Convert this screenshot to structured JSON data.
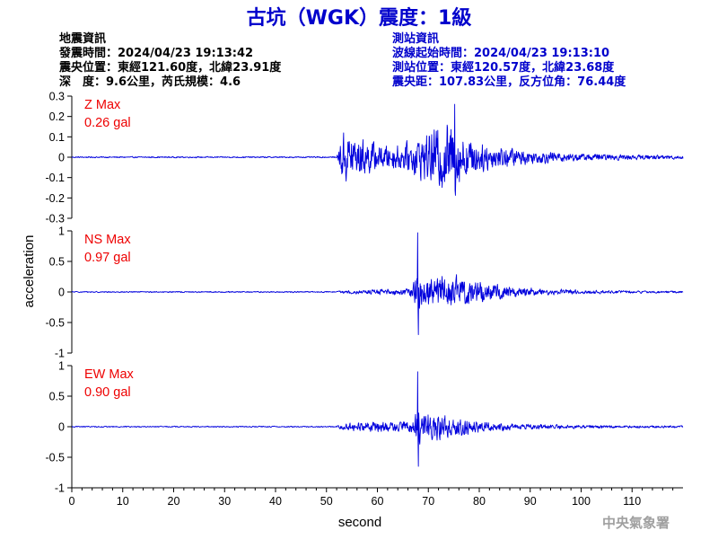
{
  "header": {
    "title": "古坑（WGK）震度：1級",
    "event_info": {
      "heading": "地震資訊",
      "origin_time": "發震時間：2024/04/23 19:13:42",
      "epicenter": "震央位置：東經121.60度，北緯23.91度",
      "depth_magnitude": "深　度：9.6公里，芮氏規模：4.6"
    },
    "station_info": {
      "heading": "測站資訊",
      "wave_start": "波線起始時間：2024/04/23 19:13:10",
      "location": "測站位置：東經120.57度，北緯23.68度",
      "distance_azimuth": "震央距：107.83公里，反方位角：76.44度"
    }
  },
  "footer": {
    "agency": "中央氣象署"
  },
  "chart_data": {
    "type": "line",
    "xlabel": "second",
    "ylabel": "acceleration",
    "x_range": [
      0,
      120
    ],
    "x_ticks": [
      0,
      10,
      20,
      30,
      40,
      50,
      60,
      70,
      80,
      90,
      100,
      110
    ],
    "grid": false,
    "line_color": "#0000dd",
    "panels": [
      {
        "component": "Z",
        "max_label": "Z Max",
        "max_value": "0.26 gal",
        "ylim": [
          -0.3,
          0.3
        ],
        "y_ticks": [
          0.3,
          0.2,
          0.1,
          0,
          -0.1,
          -0.2,
          -0.3
        ],
        "envelope": {
          "t": [
            0,
            52,
            52.5,
            53,
            54,
            56,
            58,
            60,
            62,
            64,
            66,
            68,
            70,
            72,
            74,
            76,
            78,
            80,
            82,
            84,
            86,
            88,
            90,
            94,
            98,
            104,
            110,
            120
          ],
          "a": [
            0.004,
            0.004,
            0.06,
            0.15,
            0.17,
            0.12,
            0.11,
            0.08,
            0.07,
            0.08,
            0.09,
            0.13,
            0.15,
            0.2,
            0.23,
            0.18,
            0.12,
            0.09,
            0.08,
            0.07,
            0.06,
            0.05,
            0.04,
            0.035,
            0.025,
            0.02,
            0.015,
            0.012
          ]
        },
        "peak": {
          "t": 75.2,
          "value": 0.26
        }
      },
      {
        "component": "NS",
        "max_label": "NS Max",
        "max_value": "0.97 gal",
        "ylim": [
          -1,
          1
        ],
        "y_ticks": [
          1,
          0.5,
          0,
          -0.5,
          -1
        ],
        "envelope": {
          "t": [
            0,
            52,
            53,
            56,
            60,
            64,
            66,
            67.5,
            68,
            68.5,
            69,
            70,
            72,
            74,
            76,
            78,
            80,
            82,
            84,
            88,
            92,
            96,
            100,
            106,
            112,
            120
          ],
          "a": [
            0.012,
            0.012,
            0.03,
            0.04,
            0.05,
            0.06,
            0.08,
            0.25,
            0.5,
            0.35,
            0.25,
            0.28,
            0.3,
            0.35,
            0.3,
            0.25,
            0.25,
            0.2,
            0.15,
            0.1,
            0.07,
            0.05,
            0.04,
            0.03,
            0.025,
            0.02
          ]
        },
        "peak": {
          "t": 67.9,
          "value": 0.97
        }
      },
      {
        "component": "EW",
        "max_label": "EW Max",
        "max_value": "0.90 gal",
        "ylim": [
          -1,
          1
        ],
        "y_ticks": [
          1,
          0.5,
          0,
          -0.5,
          -1
        ],
        "envelope": {
          "t": [
            0,
            52,
            53,
            55,
            58,
            60,
            63,
            65,
            67,
            67.5,
            68,
            68.5,
            69,
            71,
            73,
            75,
            77,
            80,
            84,
            88,
            92,
            96,
            100,
            106,
            112,
            120
          ],
          "a": [
            0.012,
            0.012,
            0.06,
            0.08,
            0.1,
            0.1,
            0.09,
            0.1,
            0.15,
            0.4,
            0.55,
            0.35,
            0.3,
            0.28,
            0.25,
            0.2,
            0.18,
            0.12,
            0.08,
            0.06,
            0.05,
            0.04,
            0.035,
            0.03,
            0.025,
            0.02
          ]
        },
        "peak": {
          "t": 67.9,
          "value": 0.9
        }
      }
    ]
  }
}
